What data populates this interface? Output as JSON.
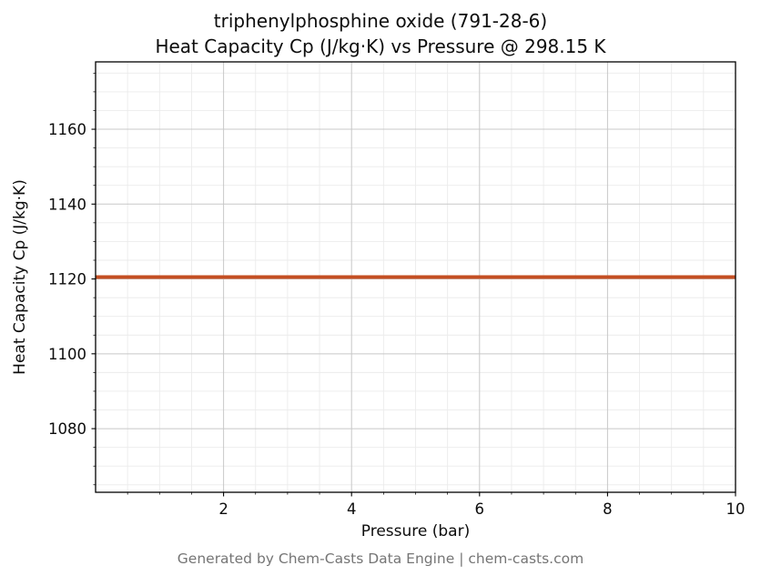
{
  "title": {
    "line1": "triphenylphosphine oxide (791-28-6)",
    "line2": "Heat Capacity Cp (J/kg·K) vs Pressure @ 298.15 K"
  },
  "footer": "Generated by Chem-Casts Data Engine | chem-casts.com",
  "chart_data": {
    "type": "line",
    "title": "triphenylphosphine oxide (791-28-6) — Heat Capacity Cp (J/kg·K) vs Pressure @ 298.15 K",
    "compound": "triphenylphosphine oxide",
    "cas": "791-28-6",
    "temperature": "298.15 K",
    "xlabel": "Pressure (bar)",
    "ylabel": "Heat Capacity Cp (J/kg·K)",
    "xlim": [
      0,
      10
    ],
    "ylim": [
      1063,
      1178
    ],
    "x_ticks": [
      2,
      4,
      6,
      8,
      10
    ],
    "y_ticks": [
      1080,
      1100,
      1120,
      1140,
      1160
    ],
    "x_minor_step": 0.5,
    "y_minor_step": 5,
    "grid": true,
    "legend_position": "none",
    "constant_value": 1120.5,
    "series": [
      {
        "name": "Heat Capacity Cp",
        "color": "#c44e22",
        "line_width": 4,
        "x": [
          0,
          1,
          2,
          3,
          4,
          5,
          6,
          7,
          8,
          9,
          10
        ],
        "y": [
          1120.5,
          1120.5,
          1120.5,
          1120.5,
          1120.5,
          1120.5,
          1120.5,
          1120.5,
          1120.5,
          1120.5,
          1120.5
        ]
      }
    ],
    "colors": {
      "major_grid": "#c8c8c8",
      "minor_grid": "#ebebeb",
      "axes_border": "#000000"
    }
  }
}
